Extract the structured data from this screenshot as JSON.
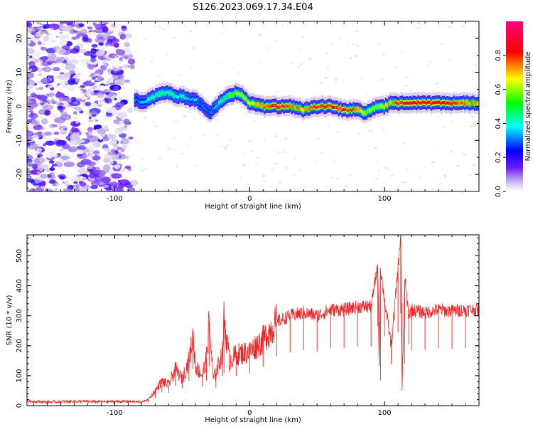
{
  "figure": {
    "title": "S126.2023.069.17.34.E04"
  },
  "colorbar": {
    "label": "Normalized spectral amplitude",
    "ticks": [
      "0.0",
      "0.2",
      "0.4",
      "0.6",
      "0.8"
    ],
    "tick_values": [
      0.0,
      0.2,
      0.4,
      0.6,
      0.8
    ],
    "range": [
      0,
      1
    ],
    "colormap": [
      "#ffffff",
      "#b39ddb",
      "#6a1aff",
      "#0000ff",
      "#00ffff",
      "#00ff00",
      "#ffff00",
      "#ff0000",
      "#ff007f"
    ]
  },
  "chart_data": [
    {
      "type": "heatmap",
      "title": "",
      "xlabel": "Height of straight line (km)",
      "ylabel": "Frequency (Hz)",
      "xlim": [
        -165,
        170
      ],
      "ylim": [
        -25,
        25
      ],
      "xticks": [
        -100,
        0,
        100
      ],
      "xtick_labels": [
        "-100",
        "0",
        "100"
      ],
      "yticks": [
        -20,
        -10,
        0,
        10,
        20
      ],
      "ytick_labels": [
        "-20",
        "-10",
        "0",
        "10",
        "20"
      ],
      "series": [
        {
          "x": [
            -85,
            -80,
            -75,
            -70,
            -65,
            -60,
            -55,
            -50,
            -45,
            -40,
            -35,
            -30,
            -25,
            -20,
            -15,
            -10,
            -5,
            0,
            10,
            20,
            30,
            40,
            50,
            60,
            70,
            80,
            85,
            90,
            95,
            100,
            105,
            110,
            120,
            130,
            140,
            150,
            160,
            170
          ],
          "y": [
            2,
            1,
            2,
            3,
            4,
            4,
            3,
            3,
            2,
            2,
            0,
            -2,
            0,
            2,
            3,
            4,
            3,
            1,
            0,
            0,
            0,
            -1,
            0,
            0,
            -1,
            -1,
            -2,
            -1,
            0,
            0,
            1,
            1,
            1,
            1,
            1,
            1,
            1,
            1
          ],
          "amplitude": [
            0.3,
            0.35,
            0.4,
            0.45,
            0.45,
            0.45,
            0.4,
            0.4,
            0.35,
            0.35,
            0.3,
            0.3,
            0.35,
            0.45,
            0.55,
            0.6,
            0.6,
            0.65,
            0.75,
            0.8,
            0.75,
            0.7,
            0.8,
            0.8,
            0.8,
            0.75,
            0.6,
            0.6,
            0.6,
            0.65,
            0.7,
            0.8,
            0.85,
            0.85,
            0.85,
            0.8,
            0.75,
            0.7
          ]
        }
      ],
      "noise_region_xlim": [
        -165,
        -85
      ]
    },
    {
      "type": "line",
      "title": "",
      "xlabel": "Height of straight line (km)",
      "ylabel": "SNR (10 * v/v)",
      "xlim": [
        -165,
        170
      ],
      "ylim": [
        0,
        570
      ],
      "xticks": [
        -100,
        0,
        100
      ],
      "xtick_labels": [
        "-100",
        "0",
        "100"
      ],
      "yticks": [
        0,
        100,
        200,
        300,
        400,
        500
      ],
      "ytick_labels": [
        "0",
        "100",
        "200",
        "300",
        "400",
        "500"
      ],
      "series": [
        {
          "color": "#ee2222",
          "x": [
            -165,
            -150,
            -130,
            -110,
            -90,
            -80,
            -75,
            -70,
            -65,
            -60,
            -55,
            -50,
            -45,
            -42,
            -40,
            -35,
            -32,
            -30,
            -27,
            -25,
            -20,
            -19,
            -15,
            -10,
            0,
            10,
            20,
            30,
            40,
            50,
            60,
            70,
            80,
            90,
            95,
            96,
            97,
            100,
            105,
            110,
            112,
            113,
            115,
            118,
            120,
            130,
            140,
            150,
            160,
            170
          ],
          "y": [
            15,
            12,
            14,
            13,
            14,
            12,
            20,
            50,
            80,
            70,
            120,
            90,
            150,
            230,
            130,
            100,
            160,
            280,
            90,
            110,
            180,
            290,
            150,
            170,
            180,
            220,
            280,
            300,
            310,
            300,
            320,
            320,
            330,
            330,
            470,
            140,
            460,
            350,
            200,
            460,
            570,
            50,
            420,
            300,
            320,
            310,
            320,
            315,
            320,
            320
          ]
        }
      ]
    }
  ]
}
